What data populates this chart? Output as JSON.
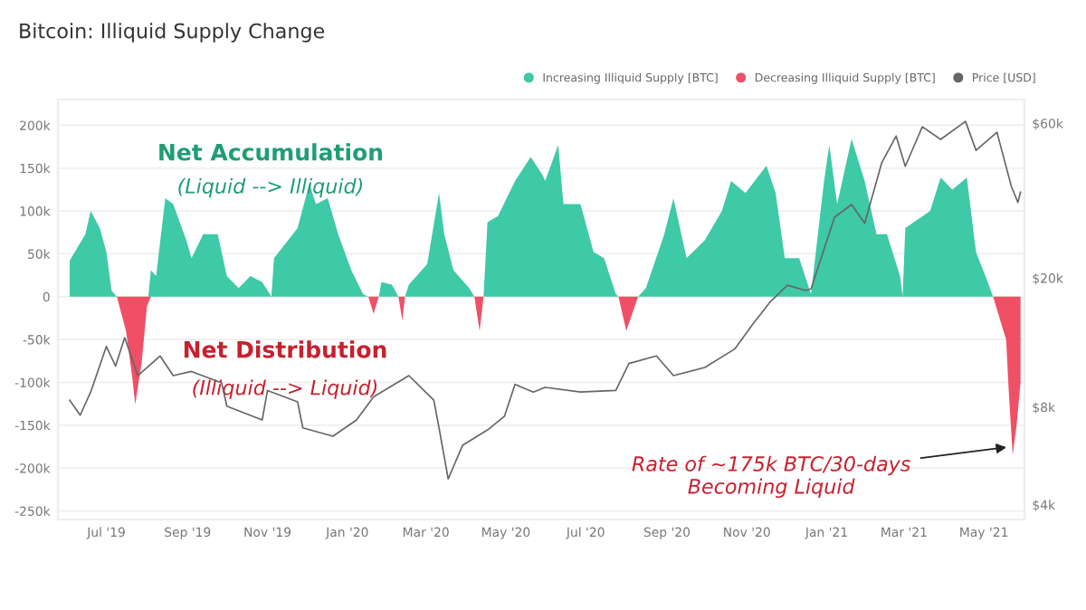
{
  "chart_data": {
    "type": "area",
    "title": "Bitcoin: Illiquid Supply Change",
    "annotations": [
      "Net Accumulation",
      "(Liquid --> Illiquid)",
      "Net Distribution",
      "(Illiquid --> Liquid)",
      {
        "text": "Rate of ~175k BTC/30-days\nBecoming Liquid",
        "x": "2021-05-22",
        "y": -175000
      }
    ],
    "xlim": [
      "2019-05-25",
      "2021-06-01"
    ],
    "xticks": [
      {
        "value": "2019-07-01",
        "label": "Jul '19"
      },
      {
        "value": "2019-09-01",
        "label": "Sep '19"
      },
      {
        "value": "2019-11-01",
        "label": "Nov '19"
      },
      {
        "value": "2020-01-01",
        "label": "Jan '20"
      },
      {
        "value": "2020-03-01",
        "label": "Mar '20"
      },
      {
        "value": "2020-05-01",
        "label": "May '20"
      },
      {
        "value": "2020-07-01",
        "label": "Jul '20"
      },
      {
        "value": "2020-09-01",
        "label": "Sep '20"
      },
      {
        "value": "2020-11-01",
        "label": "Nov '20"
      },
      {
        "value": "2021-01-01",
        "label": "Jan '21"
      },
      {
        "value": "2021-03-01",
        "label": "Mar '21"
      },
      {
        "value": "2021-05-01",
        "label": "May '21"
      }
    ],
    "ylim": [
      -260000,
      230000
    ],
    "yticks": [
      {
        "value": -250000,
        "label": "-250k"
      },
      {
        "value": -200000,
        "label": "-200k"
      },
      {
        "value": -150000,
        "label": "-150k"
      },
      {
        "value": -100000,
        "label": "-100k"
      },
      {
        "value": -50000,
        "label": "-50k"
      },
      0,
      {
        "value": 50000,
        "label": "50k"
      },
      {
        "value": 100000,
        "label": "100k"
      },
      {
        "value": 150000,
        "label": "150k"
      },
      {
        "value": 200000,
        "label": "200k"
      }
    ],
    "log": "y2",
    "y2lim": [
      3600,
      71000
    ],
    "y2ticks": [
      {
        "value": 4000,
        "label": "$4k"
      },
      {
        "value": 8000,
        "label": "$8k"
      },
      {
        "value": 20000,
        "label": "$20k"
      },
      {
        "value": 60000,
        "label": "$60k"
      }
    ],
    "grid": "y",
    "legend": "top right",
    "series": [
      {
        "name": "Increasing Illiquid Supply [BTC]",
        "color": "#3ec9a7",
        "x": [
          "2019-06-03",
          "2019-06-15",
          "2019-06-19",
          "2019-06-26",
          "2019-07-01",
          "2019-07-05",
          "2019-07-09",
          "2019-08-02",
          "2019-08-04",
          "2019-08-08",
          "2019-08-15",
          "2019-08-21",
          "2019-08-31",
          "2019-09-04",
          "2019-09-13",
          "2019-09-24",
          "2019-10-01",
          "2019-10-10",
          "2019-10-19",
          "2019-10-28",
          "2019-11-04",
          "2019-11-06",
          "2019-11-24",
          "2019-12-03",
          "2019-12-08",
          "2019-12-17",
          "2019-12-25",
          "2020-01-04",
          "2020-01-13",
          "2020-01-17",
          "2020-01-25",
          "2020-01-27",
          "2020-02-04",
          "2020-02-09",
          "2020-02-14",
          "2020-02-17",
          "2020-03-02",
          "2020-03-11",
          "2020-03-15",
          "2020-03-22",
          "2020-04-03",
          "2020-04-07",
          "2020-04-14",
          "2020-04-17",
          "2020-04-25",
          "2020-05-08",
          "2020-05-20",
          "2020-05-29",
          "2020-05-31",
          "2020-06-10",
          "2020-06-14",
          "2020-06-27",
          "2020-07-07",
          "2020-07-15",
          "2020-07-24",
          "2020-07-26",
          "2020-08-10",
          "2020-08-16",
          "2020-08-30",
          "2020-09-06",
          "2020-09-16",
          "2020-09-30",
          "2020-10-13",
          "2020-10-20",
          "2020-10-31",
          "2020-11-16",
          "2020-11-23",
          "2020-11-30",
          "2020-12-11",
          "2020-12-20",
          "2020-12-30",
          "2021-01-03",
          "2021-01-09",
          "2021-01-20",
          "2021-01-30",
          "2021-02-08",
          "2021-02-16",
          "2021-02-26",
          "2021-02-28",
          "2021-03-02",
          "2021-03-21",
          "2021-03-29",
          "2021-04-07",
          "2021-04-18",
          "2021-04-25",
          "2021-05-04",
          "2021-05-08",
          "2021-05-29"
        ],
        "values": [
          42000,
          73000,
          100000,
          80000,
          52000,
          7000,
          0,
          0,
          31000,
          24000,
          115000,
          108000,
          66000,
          45000,
          73000,
          73000,
          24000,
          10000,
          24000,
          17000,
          0,
          45000,
          80000,
          132000,
          108000,
          115000,
          73000,
          31000,
          3000,
          0,
          0,
          17000,
          14000,
          0,
          0,
          14000,
          38000,
          121000,
          73000,
          31000,
          10000,
          0,
          0,
          87000,
          94000,
          135000,
          163000,
          142000,
          135000,
          177000,
          108000,
          108000,
          52000,
          45000,
          3000,
          0,
          0,
          10000,
          73000,
          115000,
          45000,
          66000,
          100000,
          135000,
          121000,
          153000,
          121000,
          45000,
          45000,
          3000,
          135000,
          177000,
          108000,
          184000,
          135000,
          73000,
          73000,
          24000,
          0,
          80000,
          100000,
          139000,
          125000,
          139000,
          52000,
          17000,
          0,
          0
        ]
      },
      {
        "name": "Decreasing Illiquid Supply [BTC]",
        "color": "#ef5066",
        "x": [
          "2019-07-09",
          "2019-07-16",
          "2019-07-21",
          "2019-07-23",
          "2019-07-28",
          "2019-08-01",
          "2019-08-04",
          "2020-01-17",
          "2020-01-21",
          "2020-01-25",
          "2020-02-09",
          "2020-02-12",
          "2020-02-14",
          "2020-04-07",
          "2020-04-11",
          "2020-04-14",
          "2020-07-26",
          "2020-08-01",
          "2020-08-10",
          "2021-05-08",
          "2021-05-12",
          "2021-05-18",
          "2021-05-20",
          "2021-05-23",
          "2021-05-26",
          "2021-05-29"
        ],
        "values": [
          0,
          -40000,
          -97000,
          -126000,
          -76000,
          -11000,
          0,
          0,
          -20000,
          0,
          0,
          -28000,
          0,
          0,
          -40000,
          0,
          0,
          -40000,
          0,
          0,
          -20000,
          -50000,
          -110000,
          -185000,
          -150000,
          -100000
        ]
      },
      {
        "name": "Price [USD]",
        "type": "line",
        "axis": "y2",
        "color": "#666666",
        "x": [
          "2019-06-03",
          "2019-06-11",
          "2019-06-19",
          "2019-07-01",
          "2019-07-08",
          "2019-07-15",
          "2019-07-25",
          "2019-08-11",
          "2019-08-21",
          "2019-09-04",
          "2019-09-27",
          "2019-10-01",
          "2019-10-28",
          "2019-11-01",
          "2019-11-24",
          "2019-11-28",
          "2019-12-21",
          "2020-01-08",
          "2020-01-21",
          "2020-02-17",
          "2020-03-07",
          "2020-03-11",
          "2020-03-18",
          "2020-03-29",
          "2020-04-17",
          "2020-04-30",
          "2020-05-08",
          "2020-05-22",
          "2020-05-31",
          "2020-06-27",
          "2020-07-24",
          "2020-08-03",
          "2020-08-24",
          "2020-09-06",
          "2020-09-30",
          "2020-10-23",
          "2020-11-05",
          "2020-11-19",
          "2020-12-02",
          "2020-12-16",
          "2020-12-20",
          "2021-01-07",
          "2021-01-20",
          "2021-01-30",
          "2021-02-12",
          "2021-02-23",
          "2021-03-02",
          "2021-03-15",
          "2021-03-29",
          "2021-04-17",
          "2021-04-25",
          "2021-05-11",
          "2021-05-22",
          "2021-05-27",
          "2021-05-29"
        ],
        "values": [
          8400,
          7550,
          8900,
          12300,
          10700,
          13100,
          10000,
          11500,
          10000,
          10300,
          9500,
          8050,
          7300,
          9000,
          8300,
          6900,
          6500,
          7300,
          8600,
          10000,
          8400,
          6900,
          4800,
          6100,
          6800,
          7500,
          9400,
          8900,
          9200,
          8900,
          9000,
          10900,
          11500,
          10000,
          10600,
          12100,
          14300,
          16900,
          19000,
          18300,
          18500,
          30800,
          33700,
          29500,
          45300,
          54800,
          44200,
          58500,
          53500,
          60800,
          49500,
          56300,
          38300,
          34200,
          36800
        ]
      }
    ]
  }
}
